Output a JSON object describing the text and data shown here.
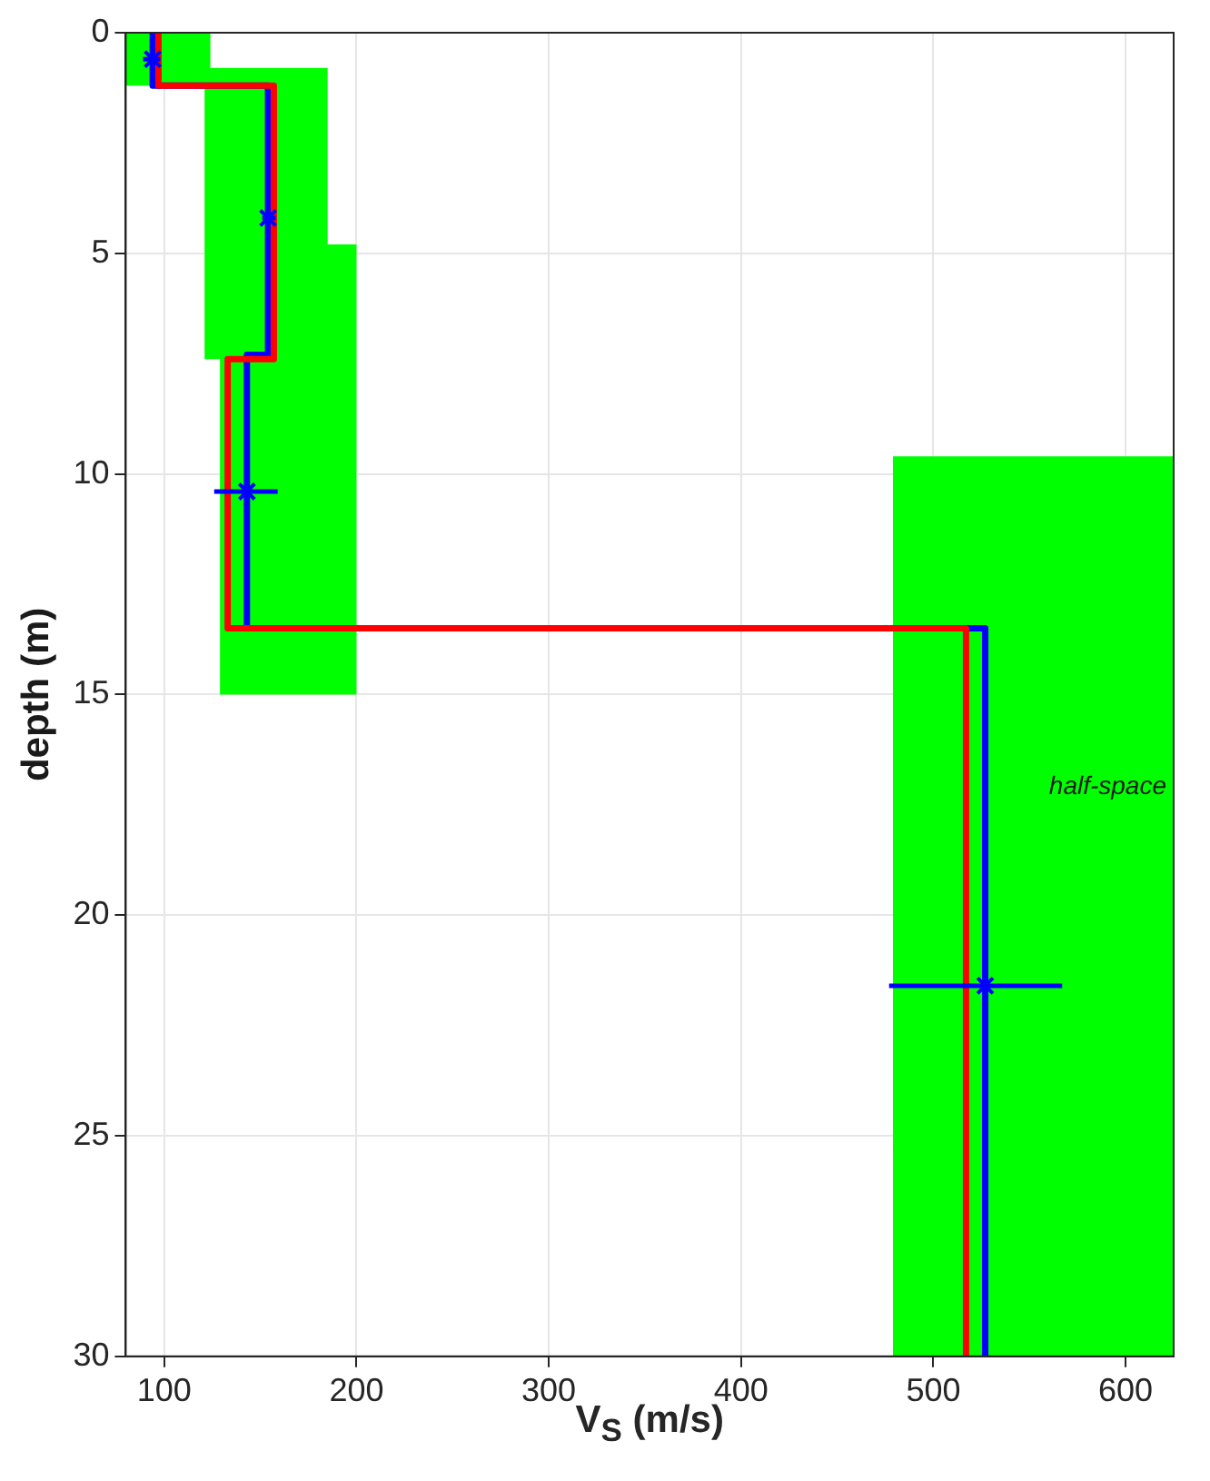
{
  "chart_data": {
    "type": "line",
    "xlabel": "V$_{S}$ (m/s)",
    "ylabel": "depth (m)",
    "xlim": [
      80,
      625
    ],
    "xticks": [
      100,
      200,
      300,
      400,
      500,
      600
    ],
    "ylim": [
      30,
      0
    ],
    "yticks": [
      0,
      5,
      10,
      15,
      20,
      25,
      30
    ],
    "grid": true,
    "legend": false,
    "series": [
      {
        "type": "area",
        "color": "#00ff00",
        "x": [
          80,
          124,
          124,
          185,
          185,
          200,
          200,
          129,
          129,
          121,
          121,
          80,
          80
        ],
        "values": [
          0,
          0,
          0.8,
          0.8,
          4.8,
          4.8,
          15,
          15,
          7.4,
          7.4,
          1.2,
          1.2,
          0
        ]
      },
      {
        "type": "area",
        "color": "#00ff00",
        "x": [
          479,
          625,
          625,
          479,
          479
        ],
        "values": [
          9.6,
          9.6,
          30,
          30,
          9.6
        ]
      },
      {
        "color": "#ff0000",
        "x": [
          97,
          97,
          157,
          157,
          133,
          133,
          517,
          517
        ],
        "values": [
          0,
          1.2,
          1.2,
          7.4,
          7.4,
          13.5,
          13.5,
          30
        ]
      },
      {
        "color": "#0000ff",
        "x": [
          94,
          94,
          154,
          154,
          143,
          143,
          527,
          527
        ],
        "values": [
          0,
          1.2,
          1.2,
          7.3,
          7.3,
          13.5,
          13.5,
          30
        ]
      },
      {
        "type": "scatter",
        "color": "#0000ff",
        "marker": "cross",
        "x": [
          94,
          154,
          143,
          527
        ],
        "values": [
          0.6,
          4.2,
          10.4,
          21.6
        ],
        "xerrors": [
          [
            89,
            98
          ],
          [
            151,
            158
          ],
          [
            126,
            159
          ],
          [
            477,
            567
          ]
        ]
      }
    ],
    "annotations": [
      "half-space"
    ]
  }
}
